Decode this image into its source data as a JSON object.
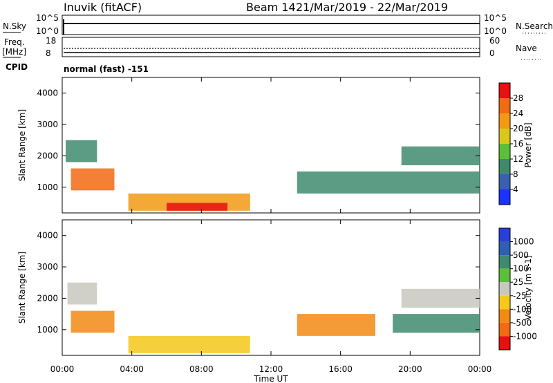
{
  "header": {
    "station": "Inuvik (fitACF)",
    "beam": "Beam 14",
    "date_range": "21/Mar/2019 - 22/Mar/2019"
  },
  "left_labels": {
    "nsky": "N.Sky",
    "freq": "Freq.",
    "freq_unit": "[MHz]",
    "cpid": "CPID"
  },
  "right_labels": {
    "nsearch": "N.Search",
    "nave": "Nave"
  },
  "cpid_text": "normal (fast) -151",
  "chart_data": [
    {
      "type": "line",
      "title": "",
      "ylabel_left": "N.Sky",
      "ylabel_right": "N.Search",
      "left_ticks": [
        "10^5",
        "10^0"
      ],
      "right_ticks": [
        "10^5",
        "10^0"
      ]
    },
    {
      "type": "line",
      "ylabel_left": "Freq. [MHz]",
      "ylabel_right": "Nave",
      "left_ticks": [
        "18",
        "8"
      ],
      "right_ticks": [
        "60",
        "0"
      ]
    },
    {
      "type": "heatmap",
      "quantity": "Power",
      "ylabel": "Slant Range [km]",
      "y_ticks": [
        "1000",
        "2000",
        "3000",
        "4000"
      ],
      "ylim": [
        180,
        4500
      ],
      "colorbar_label": "Power [dB]",
      "colorbar_ticks": [
        "4",
        "8",
        "12",
        "16",
        "20",
        "24",
        "28"
      ],
      "colors": [
        "#1a33ff",
        "#3a5fb0",
        "#3f8a6e",
        "#5bbf3a",
        "#d8c81a",
        "#f29a14",
        "#f26a14",
        "#e81010"
      ],
      "regions": [
        {
          "t0": 0.5,
          "t1": 3.0,
          "r0": 900,
          "r1": 1600,
          "level": 6
        },
        {
          "t0": 0.2,
          "t1": 2.0,
          "r0": 1800,
          "r1": 2500,
          "level": 2
        },
        {
          "t0": 3.8,
          "t1": 10.8,
          "r0": 250,
          "r1": 800,
          "level": 5
        },
        {
          "t0": 6.0,
          "t1": 9.5,
          "r0": 250,
          "r1": 500,
          "level": 7
        },
        {
          "t0": 13.5,
          "t1": 24.0,
          "r0": 800,
          "r1": 1500,
          "level": 2
        },
        {
          "t0": 19.5,
          "t1": 24.0,
          "r0": 1700,
          "r1": 2300,
          "level": 2
        }
      ]
    },
    {
      "type": "heatmap",
      "quantity": "Velocity",
      "ylabel": "Slant Range [km]",
      "y_ticks": [
        "1000",
        "2000",
        "3000",
        "4000"
      ],
      "ylim": [
        180,
        4500
      ],
      "colorbar_label": "Velocity [m s-1]",
      "colorbar_ticks": [
        "1000",
        "500",
        "100",
        "25",
        "-25",
        "-100",
        "-500",
        "-1000"
      ],
      "colors": [
        "#2a3fd8",
        "#2f5fb0",
        "#3f8a6e",
        "#5bbf3a",
        "#c8c8c0",
        "#f5c81a",
        "#f28a14",
        "#f26a14",
        "#e81010"
      ],
      "regions": [
        {
          "t0": 0.5,
          "t1": 3.0,
          "r0": 900,
          "r1": 1600,
          "level": 6
        },
        {
          "t0": 0.3,
          "t1": 2.0,
          "r0": 1800,
          "r1": 2500,
          "level": 4
        },
        {
          "t0": 3.8,
          "t1": 10.8,
          "r0": 250,
          "r1": 800,
          "level": 5
        },
        {
          "t0": 13.5,
          "t1": 18.0,
          "r0": 800,
          "r1": 1500,
          "level": 6
        },
        {
          "t0": 19.0,
          "t1": 24.0,
          "r0": 900,
          "r1": 1500,
          "level": 2
        },
        {
          "t0": 19.5,
          "t1": 24.0,
          "r0": 1700,
          "r1": 2300,
          "level": 4
        }
      ]
    }
  ],
  "x_axis": {
    "ticks": [
      "00:00",
      "04:00",
      "08:00",
      "12:00",
      "16:00",
      "20:00",
      "00:00"
    ],
    "label": "Time UT"
  }
}
